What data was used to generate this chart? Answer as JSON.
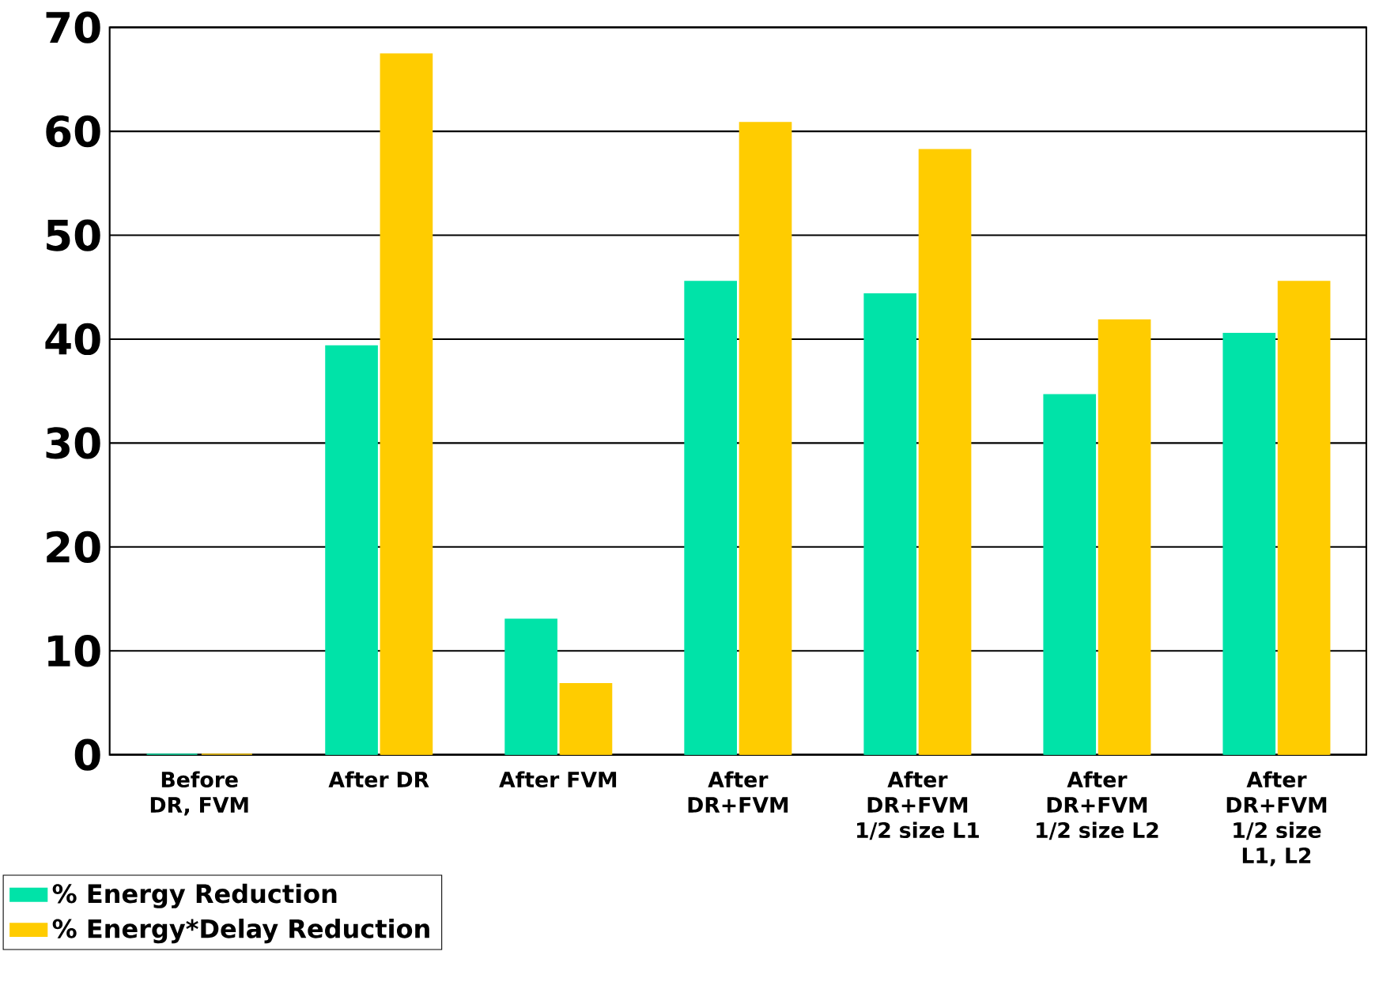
{
  "chart_data": {
    "type": "bar",
    "categories": [
      "Before DR, FVM",
      "After DR",
      "After FVM",
      "After DR+FVM",
      "After DR+FVM 1/2 size L1",
      "After DR+FVM 1/2 size L2",
      "After DR+FVM 1/2 size L1, L2"
    ],
    "series": [
      {
        "name": "% Energy Reduction",
        "color": "#00e3a8",
        "values": [
          0,
          39.3,
          13,
          45.5,
          44.3,
          34.6,
          40.5
        ]
      },
      {
        "name": "% Energy*Delay Reduction",
        "color": "#ffcc00",
        "values": [
          0,
          67.4,
          6.8,
          60.8,
          58.2,
          41.8,
          45.5
        ]
      }
    ],
    "ylim": [
      0,
      70
    ],
    "yticks": [
      0,
      10,
      20,
      30,
      40,
      50,
      60,
      70
    ],
    "grid": "y",
    "legend": "bottom left"
  }
}
